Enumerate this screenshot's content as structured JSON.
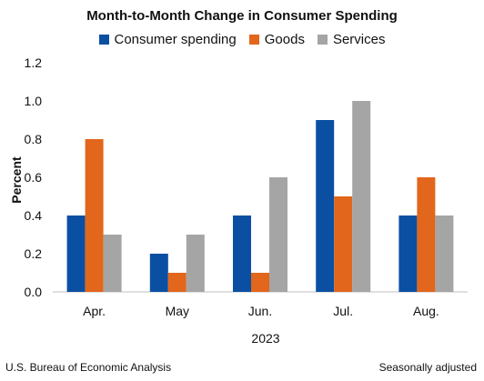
{
  "chart_data": {
    "type": "bar",
    "title": "Month-to-Month Change in Consumer Spending",
    "ylabel": "Percent",
    "xlabel": "2023",
    "categories": [
      "Apr.",
      "May",
      "Jun.",
      "Jul.",
      "Aug."
    ],
    "series": [
      {
        "name": "Consumer spending",
        "color": "#0b4fa2",
        "values": [
          0.4,
          0.2,
          0.4,
          0.9,
          0.4
        ]
      },
      {
        "name": "Goods",
        "color": "#e2661b",
        "values": [
          0.8,
          0.1,
          0.1,
          0.5,
          0.6
        ]
      },
      {
        "name": "Services",
        "color": "#a5a5a5",
        "values": [
          0.3,
          0.3,
          0.6,
          1.0,
          0.4
        ]
      }
    ],
    "ylim": [
      0,
      1.2
    ],
    "yticks": [
      "0.0",
      "0.2",
      "0.4",
      "0.6",
      "0.8",
      "1.0",
      "1.2"
    ],
    "grid": false,
    "legend_position": "top"
  },
  "footer": {
    "source": "U.S. Bureau of Economic Analysis",
    "note": "Seasonally adjusted"
  }
}
